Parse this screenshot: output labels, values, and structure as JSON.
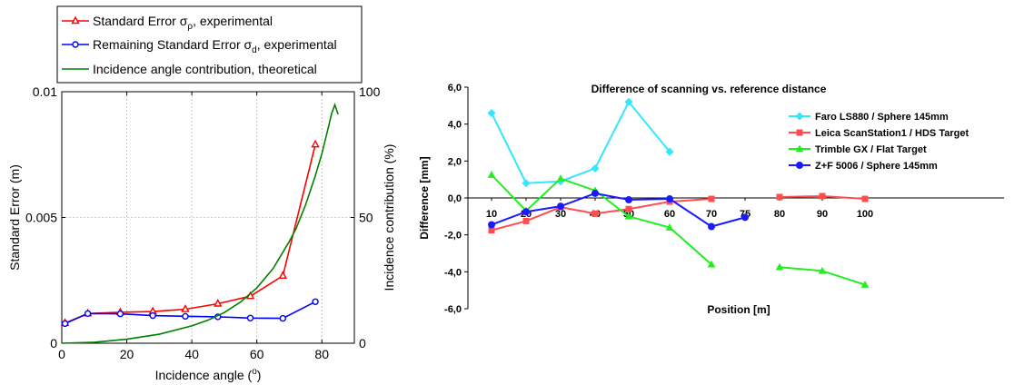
{
  "chart_data": [
    {
      "type": "line",
      "xlabel": "Incidence angle (",
      "xlabel_sup": "o",
      "xlabel_end": ")",
      "ylabel": "Standard Error (m)",
      "y2label": "Incidence contribution (%)",
      "xlim": [
        0,
        90
      ],
      "ylim": [
        0,
        0.01
      ],
      "y2lim": [
        0,
        100
      ],
      "grid": true,
      "legend_position": "top-left",
      "x_ticks": [
        0,
        20,
        40,
        60,
        80
      ],
      "x_tick_labels": [
        "0",
        "20",
        "40",
        "60",
        "80"
      ],
      "y_ticks": [
        0,
        0.005,
        0.01
      ],
      "y_tick_labels": [
        "0",
        "0.005",
        "0.01"
      ],
      "y2_ticks": [
        0,
        50,
        100
      ],
      "y2_tick_labels": [
        "0",
        "50",
        "100"
      ],
      "series": [
        {
          "name": "Standard Error σρ, experimental",
          "legend": {
            "pre": "Standard Error σ",
            "sub": "ρ",
            "post": ", experimental"
          },
          "color": "#ff0000",
          "marker": "triangle",
          "axis": "left",
          "x": [
            1,
            8,
            18,
            28,
            38,
            48,
            58,
            68,
            78
          ],
          "y": [
            0.0008,
            0.00118,
            0.00123,
            0.00126,
            0.00135,
            0.00157,
            0.00187,
            0.00268,
            0.0079
          ]
        },
        {
          "name": "Remaining Standard Error σd, experimental",
          "legend": {
            "pre": "Remaining Standard Error σ",
            "sub": "d",
            "post": ", experimental"
          },
          "color": "#0000ff",
          "marker": "circle",
          "axis": "left",
          "x": [
            1,
            8,
            18,
            28,
            38,
            48,
            58,
            68,
            78
          ],
          "y": [
            0.00078,
            0.00118,
            0.00117,
            0.0011,
            0.00107,
            0.00105,
            0.001,
            0.00099,
            0.00165
          ]
        },
        {
          "name": "Incidence angle contribution, theoretical",
          "legend": {
            "pre": "Incidence angle contribution, theoretical",
            "sub": "",
            "post": ""
          },
          "color": "#008000",
          "marker": "none",
          "axis": "right",
          "x": [
            0,
            10,
            20,
            30,
            40,
            45,
            50,
            55,
            60,
            65,
            70,
            72,
            75,
            78,
            80,
            82,
            83,
            84,
            85
          ],
          "y": [
            0,
            0.4,
            1.6,
            3.6,
            6.9,
            9.2,
            12.2,
            16.4,
            22,
            29.7,
            40.5,
            45.4,
            55,
            66.6,
            75.3,
            85.8,
            91.3,
            94.8,
            91
          ]
        }
      ]
    },
    {
      "type": "line",
      "title": "Difference of scanning vs. reference distance",
      "xlabel": "Position [m]",
      "ylabel": "Difference [mm]",
      "categories": [
        "10",
        "20",
        "30",
        "40",
        "50",
        "60",
        "70",
        "75",
        "80",
        "90",
        "100"
      ],
      "ylim": [
        -6,
        6
      ],
      "y_ticks": [
        -6,
        -4,
        -2,
        0,
        2,
        4,
        6
      ],
      "y_tick_labels": [
        "-6,0",
        "-4,0",
        "-2,0",
        "0,0",
        "2,0",
        "4,0",
        "6,0"
      ],
      "grid": false,
      "legend_position": "right",
      "series": [
        {
          "name": "Faro LS880 / Sphere 145mm",
          "color": "#33e5ff",
          "marker": "diamond",
          "segments": [
            [
              [
                "10",
                4.6
              ],
              [
                "20",
                0.8
              ],
              [
                "30",
                0.9
              ],
              [
                "40",
                1.6
              ],
              [
                "50",
                5.2
              ],
              [
                "60",
                2.5
              ]
            ]
          ]
        },
        {
          "name": "Leica ScanStation1 / HDS Target",
          "color": "#ff4d4d",
          "marker": "square",
          "segments": [
            [
              [
                "10",
                -1.75
              ],
              [
                "20",
                -1.25
              ],
              [
                "30",
                -0.5
              ],
              [
                "40",
                -0.85
              ],
              [
                "50",
                -0.6
              ],
              [
                "60",
                -0.2
              ],
              [
                "70",
                -0.05
              ]
            ],
            [
              [
                "80",
                0.05
              ],
              [
                "90",
                0.1
              ],
              [
                "100",
                -0.05
              ]
            ]
          ]
        },
        {
          "name": "Trimble GX / Flat Target",
          "color": "#22ee22",
          "marker": "triangle",
          "segments": [
            [
              [
                "10",
                1.25
              ],
              [
                "20",
                -0.7
              ],
              [
                "30",
                1.05
              ],
              [
                "40",
                0.4
              ],
              [
                "50",
                -1.0
              ],
              [
                "60",
                -1.6
              ],
              [
                "70",
                -3.6
              ]
            ],
            [
              [
                "80",
                -3.75
              ],
              [
                "90",
                -3.95
              ],
              [
                "100",
                -4.7
              ]
            ]
          ]
        },
        {
          "name": "Z+F 5006 / Sphere 145mm",
          "color": "#1a1aff",
          "marker": "circle",
          "segments": [
            [
              [
                "10",
                -1.45
              ],
              [
                "20",
                -0.75
              ],
              [
                "30",
                -0.45
              ],
              [
                "40",
                0.25
              ],
              [
                "50",
                -0.1
              ],
              [
                "60",
                -0.05
              ],
              [
                "70",
                -1.55
              ],
              [
                "75",
                -1.05
              ]
            ]
          ]
        }
      ]
    }
  ]
}
